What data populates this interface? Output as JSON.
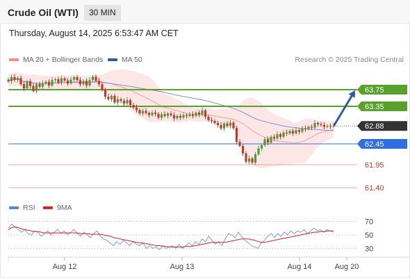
{
  "header": {
    "title": "Crude Oil (WTI)",
    "timeframe": "30 MIN"
  },
  "datetime": "Thursday, August 14, 2025 6:53:47 AM CET",
  "legend_top": [
    {
      "label": "MA 20 + Bollinger Bands",
      "color": "#f28b82"
    },
    {
      "label": "MA 50",
      "color": "#2e5aa8"
    }
  ],
  "credit": "Research © 2025 Trading Central",
  "legend_bottom": [
    {
      "label": "RSI",
      "color": "#5b86d6"
    },
    {
      "label": "9MA",
      "color": "#e0201b"
    }
  ],
  "colors": {
    "green": "#5aa02c",
    "blue": "#2f6fe0",
    "red_level": "#f4a3a3",
    "current": "#333333",
    "arrow": "#2e5aa8",
    "bull": "#4d9a3c",
    "bear": "#c0392b"
  },
  "chart_data": {
    "type": "candlestick",
    "instrument": "Crude Oil (WTI)",
    "interval": "30 MIN",
    "ylim": [
      61.2,
      64.1
    ],
    "x_ticks": [
      "Aug 12",
      "Aug 13",
      "Aug 14",
      "Aug 20"
    ],
    "levels": [
      {
        "value": 63.75,
        "label": "63.75",
        "kind": "resistance"
      },
      {
        "value": 63.35,
        "label": "63.35",
        "kind": "resistance"
      },
      {
        "value": 62.88,
        "label": "62.88",
        "kind": "current"
      },
      {
        "value": 62.45,
        "label": "62.45",
        "kind": "pivot"
      },
      {
        "value": 61.95,
        "label": "61.95",
        "kind": "support"
      },
      {
        "value": 61.4,
        "label": "61.40",
        "kind": "support"
      }
    ],
    "forecast_target": 63.75,
    "closes": [
      63.95,
      64.05,
      63.98,
      64.03,
      63.88,
      63.78,
      63.95,
      63.84,
      63.72,
      63.88,
      63.82,
      63.9,
      63.94,
      63.85,
      63.98,
      64.0,
      63.92,
      64.02,
      63.97,
      63.9,
      63.99,
      64.05,
      63.98,
      63.88,
      63.96,
      63.85,
      63.98,
      64.06,
      63.96,
      63.88,
      63.74,
      63.58,
      63.52,
      63.6,
      63.44,
      63.52,
      63.48,
      63.42,
      63.5,
      63.38,
      63.32,
      63.26,
      63.18,
      63.24,
      63.19,
      63.14,
      63.2,
      63.17,
      63.08,
      63.16,
      63.12,
      63.18,
      63.14,
      63.06,
      63.12,
      63.08,
      63.14,
      63.12,
      63.16,
      63.12,
      63.2,
      63.15,
      63.25,
      63.1,
      63.02,
      63.0,
      62.95,
      62.9,
      62.82,
      62.94,
      62.88,
      62.96,
      62.83,
      62.5,
      62.4,
      62.22,
      62.02,
      62.1,
      62.0,
      62.2,
      62.34,
      62.42,
      62.56,
      62.48,
      62.62,
      62.58,
      62.68,
      62.62,
      62.72,
      62.7,
      62.76,
      62.7,
      62.78,
      62.74,
      62.82,
      62.8,
      62.86,
      62.84,
      62.95,
      62.92,
      62.9,
      62.86,
      62.88,
      62.87,
      62.88
    ],
    "rsi": {
      "ylim": [
        20,
        80
      ],
      "ticks": [
        70,
        50,
        30
      ],
      "rsi_values": [
        60,
        66,
        62,
        58,
        54,
        58,
        52,
        50,
        56,
        54,
        48,
        52,
        56,
        50,
        54,
        58,
        52,
        56,
        50,
        54,
        58,
        52,
        48,
        54,
        50,
        46,
        52,
        56,
        48,
        44,
        42,
        38,
        34,
        40,
        36,
        42,
        38,
        34,
        40,
        36,
        34,
        38,
        30,
        34,
        30,
        32,
        28,
        34,
        30,
        32,
        34,
        30,
        36,
        30,
        34,
        38,
        34,
        40,
        36,
        44,
        40,
        48,
        42,
        36,
        40,
        34,
        44,
        52,
        50,
        46,
        54,
        48,
        42,
        38,
        34,
        32,
        30,
        38,
        42,
        48,
        52,
        46,
        52,
        48,
        54,
        50,
        56,
        52,
        56,
        54,
        58,
        52,
        56,
        60,
        56,
        58,
        54,
        58,
        56,
        54
      ],
      "ma9_values": [
        58,
        61,
        62,
        61,
        59,
        58,
        57,
        56,
        55,
        55,
        54,
        53,
        53,
        53,
        53,
        53,
        53,
        53,
        53,
        53,
        53,
        53,
        52,
        52,
        52,
        51,
        51,
        51,
        51,
        50,
        49,
        48,
        46,
        45,
        44,
        43,
        42,
        41,
        40,
        39,
        38,
        38,
        37,
        36,
        35,
        34,
        34,
        33,
        33,
        32,
        32,
        32,
        32,
        32,
        33,
        33,
        33,
        34,
        35,
        36,
        37,
        38,
        39,
        39,
        39,
        39,
        39,
        40,
        41,
        42,
        43,
        44,
        44,
        44,
        43,
        42,
        40,
        39,
        39,
        40,
        41,
        42,
        43,
        44,
        45,
        46,
        47,
        48,
        49,
        50,
        51,
        52,
        53,
        54,
        54,
        55,
        55,
        56,
        56,
        56
      ]
    }
  }
}
